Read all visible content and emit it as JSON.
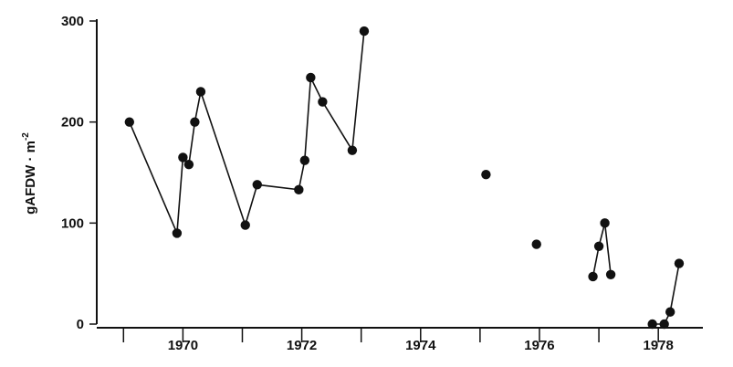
{
  "chart_data": {
    "type": "scatter",
    "title": "",
    "xlabel": "",
    "ylabel": "gAFDW · m",
    "ylabel_superscript": "-2",
    "xlim": [
      1968.55,
      1978.75
    ],
    "ylim": [
      0,
      300
    ],
    "yticks": [
      0,
      100,
      200,
      300
    ],
    "x_tick_labels": [
      "1970",
      "1972",
      "1974",
      "1976",
      "1978"
    ],
    "x_tick_label_positions": [
      1970,
      1972,
      1974,
      1976,
      1978
    ],
    "x_year_boundaries": [
      1969,
      1970,
      1971,
      1972,
      1973,
      1974,
      1975,
      1976,
      1977,
      1978
    ],
    "grid": false,
    "legend": "none",
    "segments": [
      {
        "x": [
          1969.1,
          1969.9,
          1970.0,
          1970.1,
          1970.2,
          1970.3,
          1971.05,
          1971.25,
          1971.95,
          1972.05,
          1972.15,
          1972.35,
          1972.85,
          1973.05
        ],
        "y": [
          200,
          90,
          165,
          158,
          200,
          230,
          98,
          138,
          133,
          162,
          244,
          220,
          172,
          290
        ]
      },
      {
        "x": [
          1975.1
        ],
        "y": [
          148
        ]
      },
      {
        "x": [
          1975.95
        ],
        "y": [
          79
        ]
      },
      {
        "x": [
          1976.9,
          1977.0,
          1977.1,
          1977.2
        ],
        "y": [
          47,
          77,
          100,
          49
        ]
      },
      {
        "x": [
          1977.9,
          1978.1,
          1978.2,
          1978.35
        ],
        "y": [
          0,
          0,
          12,
          60
        ]
      }
    ]
  }
}
